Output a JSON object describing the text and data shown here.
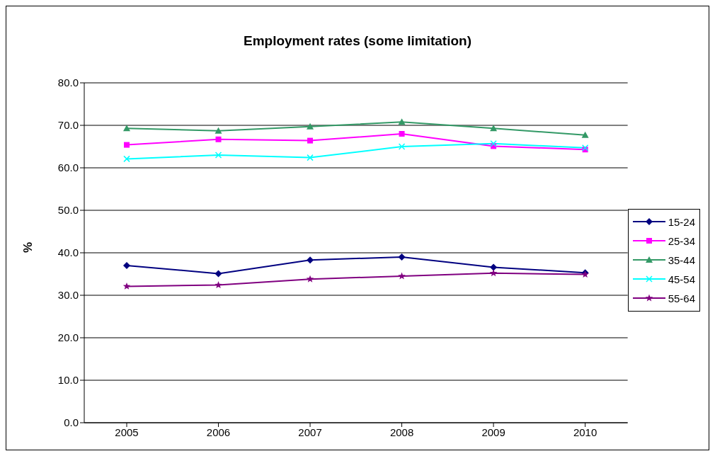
{
  "chart_data": {
    "type": "line",
    "title": "Employment rates (some limitation)",
    "ylabel": "%",
    "categories": [
      "2005",
      "2006",
      "2007",
      "2008",
      "2009",
      "2010"
    ],
    "series": [
      {
        "name": "15-24",
        "color": "#000080",
        "marker": "diamond",
        "values": [
          37.0,
          35.1,
          38.3,
          39.0,
          36.6,
          35.3
        ]
      },
      {
        "name": "25-34",
        "color": "#ff00ff",
        "marker": "square",
        "values": [
          65.4,
          66.7,
          66.4,
          68.0,
          65.1,
          64.3
        ]
      },
      {
        "name": "35-44",
        "color": "#339966",
        "marker": "triangle",
        "values": [
          69.3,
          68.7,
          69.7,
          70.8,
          69.3,
          67.7
        ]
      },
      {
        "name": "45-54",
        "color": "#00ffff",
        "marker": "cross",
        "values": [
          62.1,
          63.0,
          62.4,
          65.0,
          65.7,
          64.7
        ]
      },
      {
        "name": "55-64",
        "color": "#800080",
        "marker": "star",
        "values": [
          32.1,
          32.4,
          33.8,
          34.5,
          35.2,
          34.9
        ]
      }
    ],
    "ylim": [
      0,
      80
    ],
    "yticks": [
      {
        "value": 0,
        "label": "0.0"
      },
      {
        "value": 10,
        "label": "10.0"
      },
      {
        "value": 20,
        "label": "20.0"
      },
      {
        "value": 30,
        "label": "30.0"
      },
      {
        "value": 40,
        "label": "40.0"
      },
      {
        "value": 50,
        "label": "50.0"
      },
      {
        "value": 60,
        "label": "60.0"
      },
      {
        "value": 70,
        "label": "70.0"
      },
      {
        "value": 80,
        "label": "80.0"
      }
    ],
    "grid": "y",
    "legend": "right",
    "line_style": "solid"
  }
}
